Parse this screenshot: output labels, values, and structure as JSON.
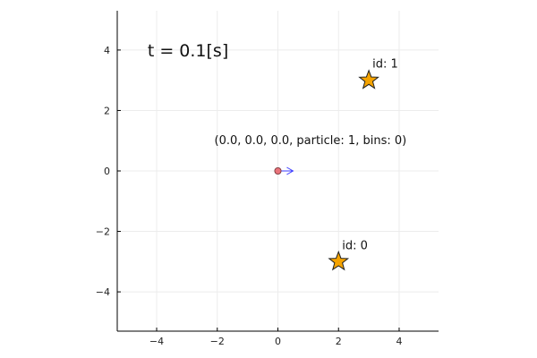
{
  "chart_data": {
    "type": "scatter",
    "title": "",
    "xlabel": "",
    "ylabel": "",
    "xlim": [
      -5.3,
      5.3
    ],
    "ylim": [
      -5.3,
      5.3
    ],
    "xticks": [
      -4,
      -2,
      0,
      2,
      4
    ],
    "yticks": [
      -4,
      -2,
      0,
      2,
      4
    ],
    "tick_labels_x": [
      "−4",
      "−2",
      "0",
      "2",
      "4"
    ],
    "tick_labels_y": [
      "−4",
      "−2",
      "0",
      "2",
      "4"
    ],
    "grid": true,
    "legend": "none",
    "time_label": "t = 0.1[s]",
    "time_label_anchor": [
      -4.3,
      4.0
    ],
    "stars": [
      {
        "label": "id: 0",
        "x": 2,
        "y": -3
      },
      {
        "label": "id: 1",
        "x": 3,
        "y": 3
      }
    ],
    "particle": {
      "x": 0.0,
      "y": 0.0,
      "label": "(0.0, 0.0, 0.0, particle: 1, bins: 0)",
      "direction_deg": 0,
      "arrow_length": 0.5
    },
    "colors": {
      "star_fill": "#F5A300",
      "star_stroke": "#222222",
      "particle_fill": "#E8737A",
      "particle_stroke": "#6b2a2e",
      "arrow": "#3a3aff"
    }
  }
}
